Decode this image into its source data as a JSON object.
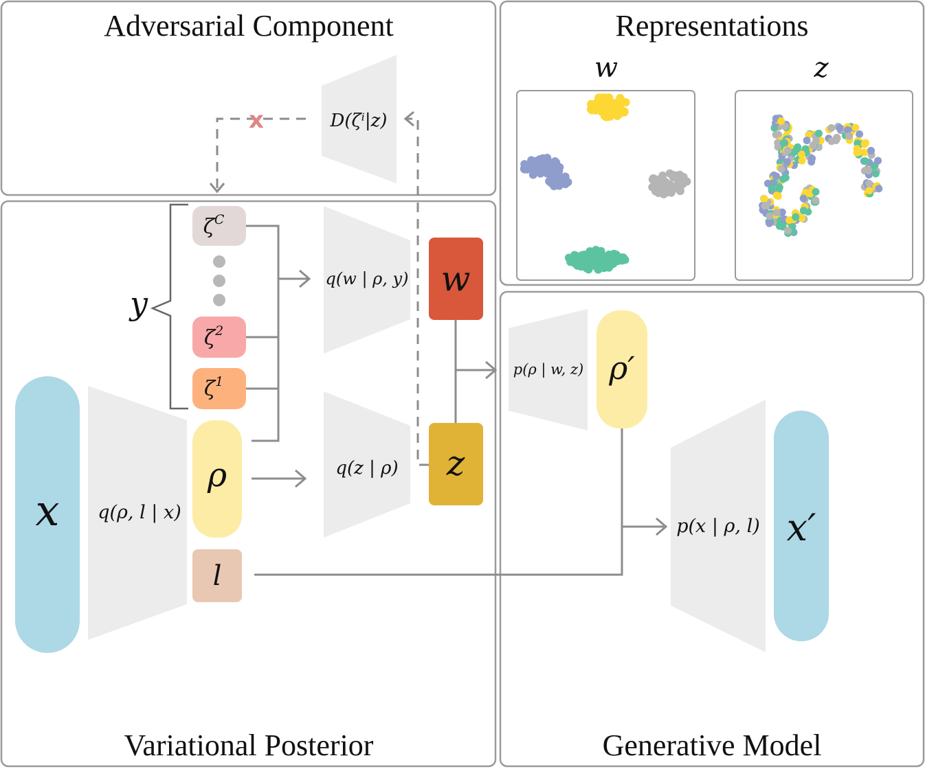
{
  "panels": {
    "adversarial": "Adversarial Component",
    "representations": "Representations",
    "posterior": "Variational Posterior",
    "generative": "Generative Model"
  },
  "representations": {
    "w_label": "w",
    "z_label": "z"
  },
  "nodes": {
    "x": "x",
    "x_prime": "x′",
    "rho": "ρ",
    "rho_prime": "ρ′",
    "l": "l",
    "w": "w",
    "z": "z",
    "y": "y",
    "zeta_c": "ζ",
    "zeta_c_sup": "C",
    "zeta_2": "ζ",
    "zeta_2_sup": "2",
    "zeta_1": "ζ",
    "zeta_1_sup": "1"
  },
  "modules": {
    "discriminator": "D(ζⁱ|z)",
    "q_rho_l_x": "q(ρ, l | x)",
    "q_w": "q(w | ρ, y)",
    "q_z": "q(z | ρ)",
    "p_rho": "p(ρ | w, z)",
    "p_x": "p(x | ρ, l)"
  },
  "blocked_marker": "x",
  "colors": {
    "x": "#add8e6",
    "rho": "#fdeca6",
    "l": "#e8c8b2",
    "w": "#d9573a",
    "z": "#e0b236",
    "zeta_c": "#e3d8d8",
    "zeta_2": "#f9a8aa",
    "zeta_1": "#fdb27e",
    "blocked": "#e08585",
    "cluster_yellow": "#fdd835",
    "cluster_blue": "#8e9dcc",
    "cluster_gray": "#b5b5b5",
    "cluster_green": "#5cc3a0"
  }
}
